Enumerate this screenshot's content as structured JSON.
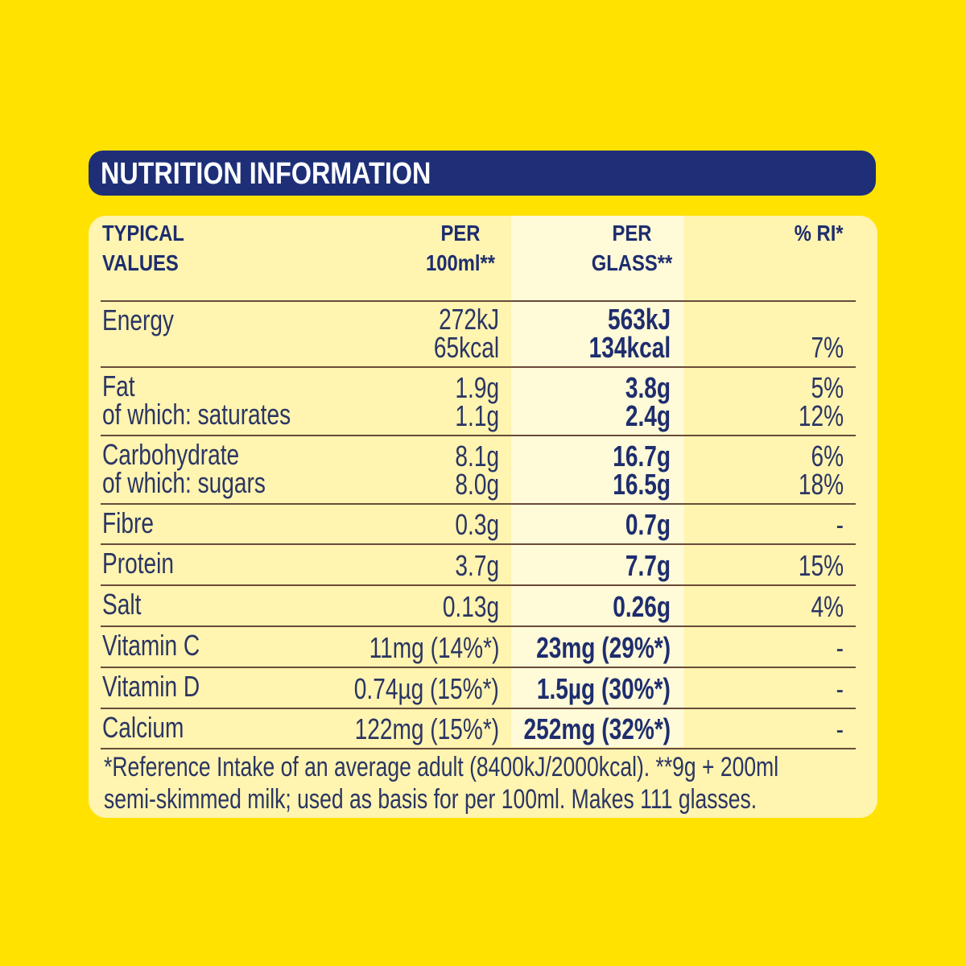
{
  "title": "NUTRITION INFORMATION",
  "header": {
    "typical": [
      "TYPICAL",
      "VALUES"
    ],
    "per100": [
      "PER",
      "100ml**"
    ],
    "perglass": [
      "PER",
      "GLASS**"
    ],
    "ri": [
      "% RI*"
    ]
  },
  "rows": [
    {
      "label": [
        "Energy"
      ],
      "per100": [
        "272kJ",
        "65kcal"
      ],
      "perglass": [
        "563kJ",
        "134kcal"
      ],
      "ri": [
        "7%"
      ]
    },
    {
      "label": [
        "Fat",
        "of which: saturates"
      ],
      "per100": [
        "1.9g",
        "1.1g"
      ],
      "perglass": [
        "3.8g",
        "2.4g"
      ],
      "ri": [
        "5%",
        "12%"
      ]
    },
    {
      "label": [
        "Carbohydrate",
        "of which: sugars"
      ],
      "per100": [
        "8.1g",
        "8.0g"
      ],
      "perglass": [
        "16.7g",
        "16.5g"
      ],
      "ri": [
        "6%",
        "18%"
      ]
    },
    {
      "label": [
        "Fibre"
      ],
      "per100": [
        "0.3g"
      ],
      "perglass": [
        "0.7g"
      ],
      "ri": [
        "-"
      ]
    },
    {
      "label": [
        "Protein"
      ],
      "per100": [
        "3.7g"
      ],
      "perglass": [
        "7.7g"
      ],
      "ri": [
        "15%"
      ]
    },
    {
      "label": [
        "Salt"
      ],
      "per100": [
        "0.13g"
      ],
      "perglass": [
        "0.26g"
      ],
      "ri": [
        "4%"
      ]
    },
    {
      "label": [
        "Vitamin C"
      ],
      "per100": [
        "11mg (14%*)"
      ],
      "perglass": [
        "23mg (29%*)"
      ],
      "ri": [
        "-"
      ]
    },
    {
      "label": [
        "Vitamin D"
      ],
      "per100": [
        "0.74µg (15%*)"
      ],
      "perglass": [
        "1.5µg (30%*)"
      ],
      "ri": [
        "-"
      ]
    },
    {
      "label": [
        "Calcium"
      ],
      "per100": [
        "122mg (15%*)"
      ],
      "perglass": [
        "252mg (32%*)"
      ],
      "ri": [
        "-"
      ]
    }
  ],
  "footnote": [
    "*Reference Intake of an average adult (8400kJ/2000kcal). **9g + 200ml",
    "semi-skimmed milk; used as basis for per 100ml. Makes 111  glasses."
  ]
}
